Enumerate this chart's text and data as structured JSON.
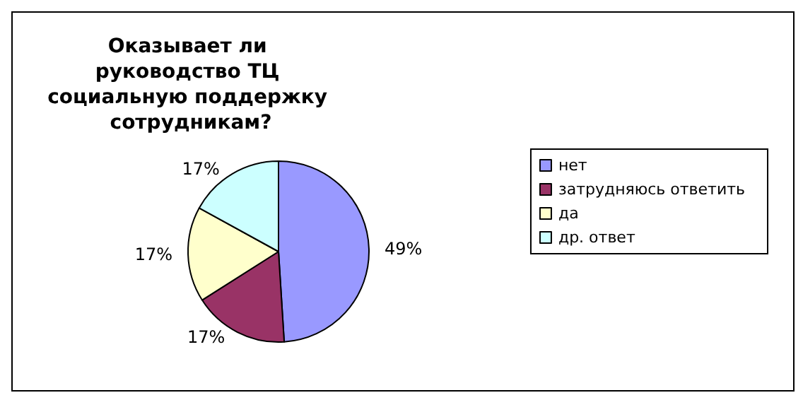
{
  "chart_data": {
    "type": "pie",
    "title": "Оказывает ли руководство ТЦ социальную поддержку сотрудникам?",
    "categories": [
      "нет",
      "затрудняюсь ответить",
      "да",
      "др. ответ"
    ],
    "values": [
      49,
      17,
      17,
      17
    ],
    "value_labels": [
      "49%",
      "17%",
      "17%",
      "17%"
    ],
    "colors": [
      "#9999ff",
      "#993366",
      "#ffffcc",
      "#ccffff"
    ],
    "legend": "right"
  }
}
